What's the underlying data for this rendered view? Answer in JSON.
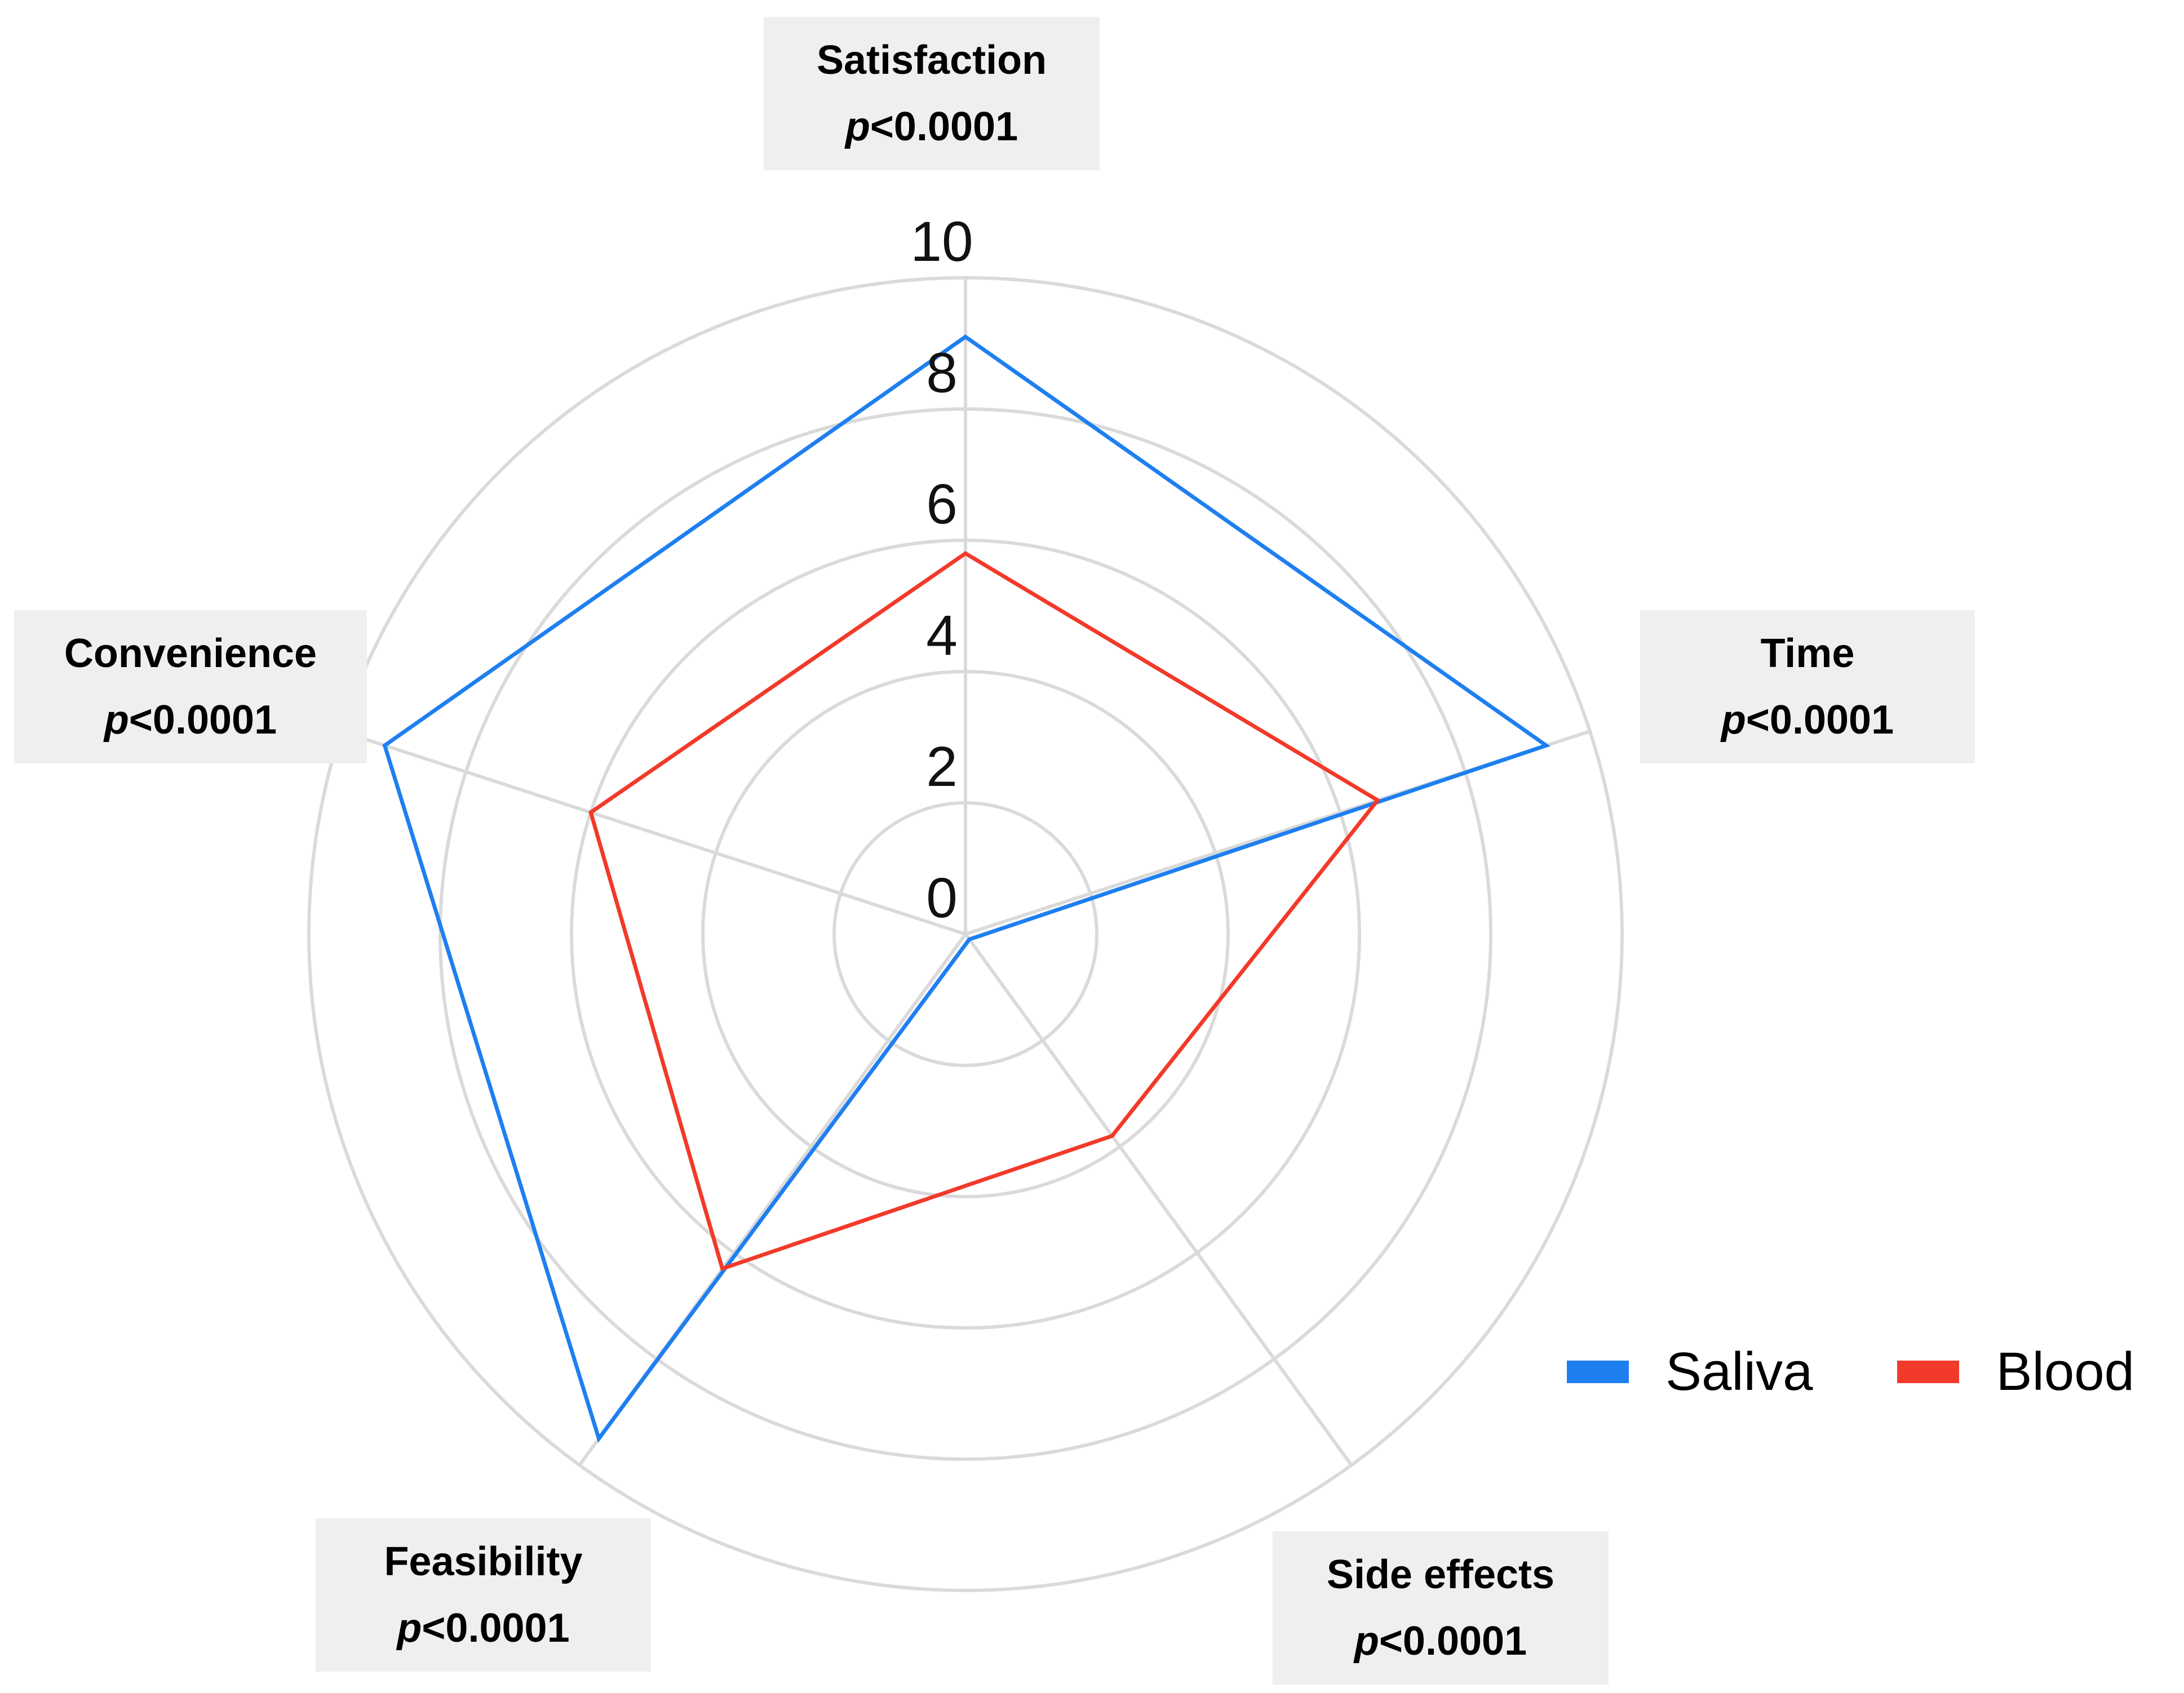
{
  "chart_data": {
    "type": "radar",
    "title": "",
    "range": [
      0,
      10
    ],
    "ticks": [
      "0",
      "2",
      "4",
      "6",
      "8",
      "10"
    ],
    "axes": [
      {
        "name": "Satisfaction",
        "p_prefix": "p",
        "p_value": "<0.0001"
      },
      {
        "name": "Time",
        "p_prefix": "p",
        "p_value": "<0.0001"
      },
      {
        "name": "Side effects",
        "p_prefix": "p",
        "p_value": "<0.0001"
      },
      {
        "name": "Feasibility",
        "p_prefix": "p",
        "p_value": "<0.0001"
      },
      {
        "name": "Convenience",
        "p_prefix": "p",
        "p_value": "<0.0001"
      }
    ],
    "series": [
      {
        "name": "Saliva",
        "color": "#1e7ff0",
        "values": [
          9.1,
          9.3,
          0.1,
          9.5,
          9.3
        ]
      },
      {
        "name": "Blood",
        "color": "#f23a2a",
        "values": [
          5.8,
          6.6,
          3.8,
          6.3,
          6.0
        ]
      }
    ],
    "legend_position": "bottom-right",
    "grid": true
  }
}
